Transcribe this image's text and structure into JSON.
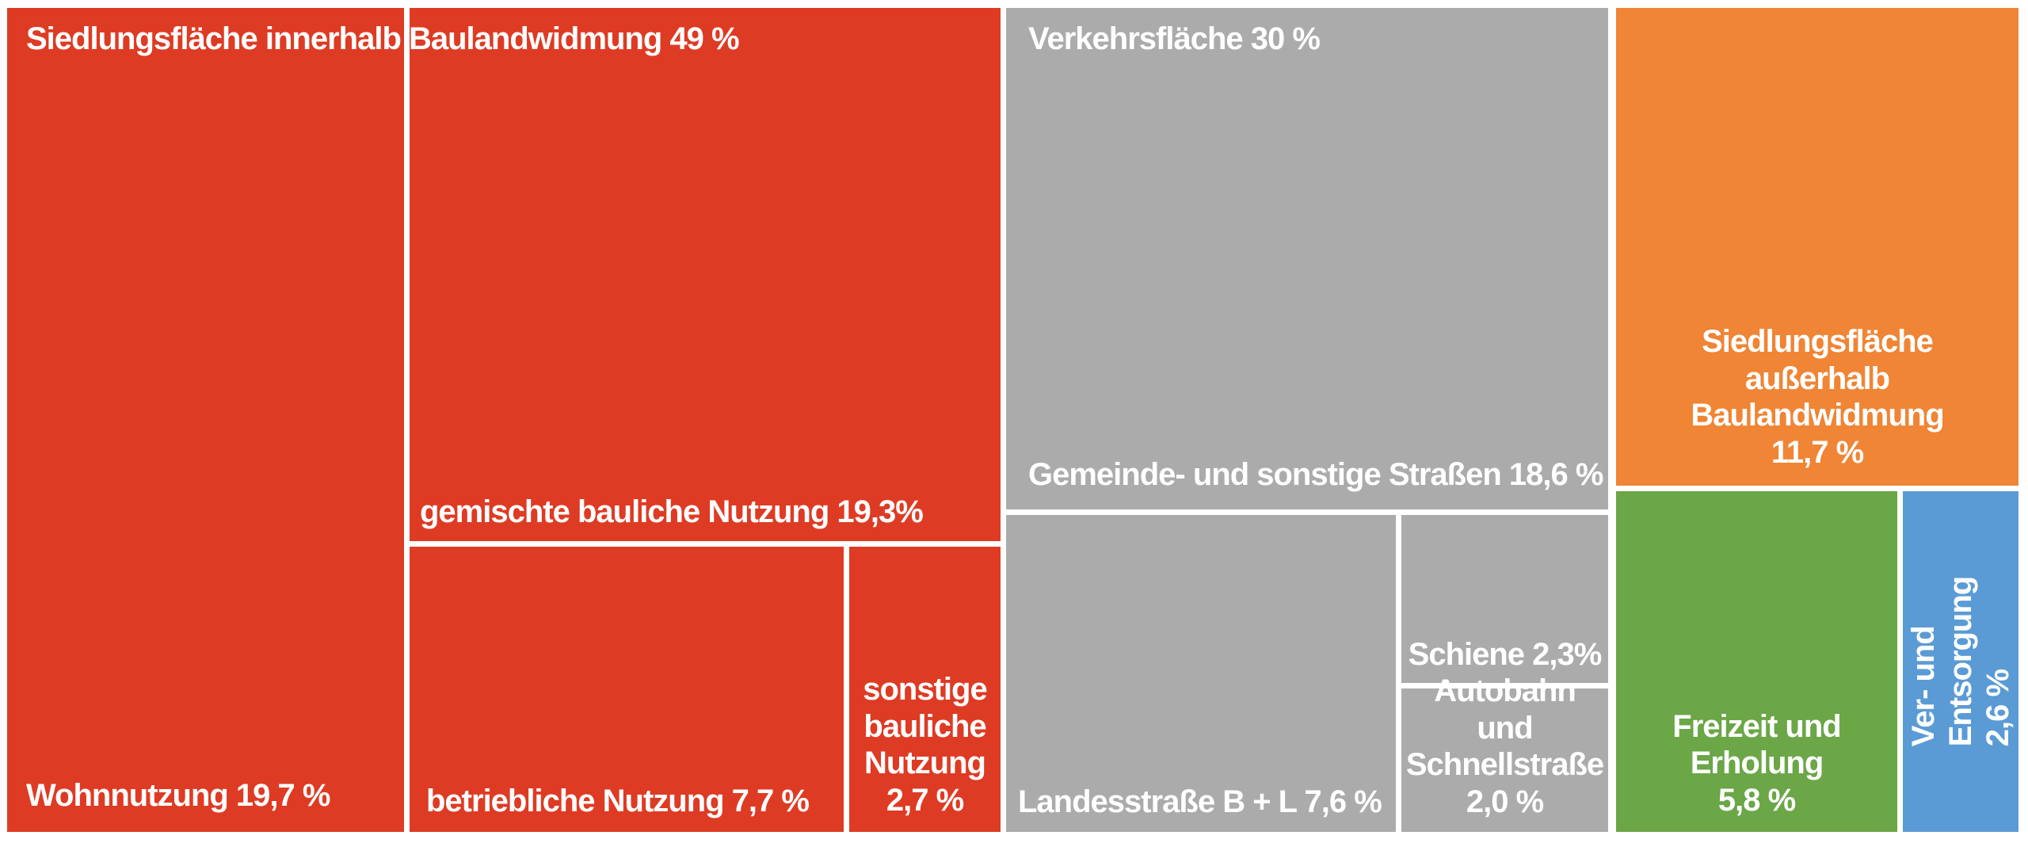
{
  "chart_data": {
    "type": "treemap",
    "title": "",
    "unit": "%",
    "legend": "none",
    "labels_in_tiles": true,
    "text_color": "#ffffff",
    "background_color": "#ffffff",
    "nodes": [
      {
        "name": "Siedlungsfläche innerhalb Baulandwidmung",
        "value": 49,
        "color": "#DE3B24",
        "children": [
          {
            "name": "Wohnnutzung",
            "value": 19.7
          },
          {
            "name": "gemischte bauliche Nutzung",
            "value": 19.3
          },
          {
            "name": "betriebliche Nutzung",
            "value": 7.7
          },
          {
            "name": "sonstige bauliche Nutzung",
            "value": 2.7
          }
        ]
      },
      {
        "name": "Verkehrsfläche",
        "value": 30,
        "color": "#ACABAB",
        "children": [
          {
            "name": "Gemeinde- und sonstige Straßen",
            "value": 18.6
          },
          {
            "name": "Landesstraße B + L",
            "value": 7.6
          },
          {
            "name": "Schiene",
            "value": 2.3
          },
          {
            "name": "Autobahn und Schnellstraße",
            "value": 2.0
          }
        ]
      },
      {
        "name": "Siedlungsfläche außerhalb Baulandwidmung",
        "value": 11.7,
        "color": "#EF8535"
      },
      {
        "name": "Freizeit und Erholung",
        "value": 5.8,
        "color": "#6BA647"
      },
      {
        "name": "Ver- und Entsorgung",
        "value": 2.6,
        "color": "#5B9BD5"
      }
    ]
  },
  "display": {
    "siedlung_innerhalb_title": "Siedlungsfläche innerhalb Baulandwidmung 49 %",
    "verkehrsflaeche_title": "Verkehrsfläche 30 %",
    "wohnnutzung": "Wohnnutzung 19,7 %",
    "gemischte": "gemischte bauliche Nutzung 19,3%",
    "betriebliche": "betriebliche Nutzung 7,7 %",
    "sonstige": "sonstige\nbauliche\nNutzung\n2,7 %",
    "gemeinde": "Gemeinde- und sonstige Straßen 18,6 %",
    "landesstrasse": "Landesstraße B + L 7,6 %",
    "schiene": "Schiene 2,3%",
    "autobahn": "Autobahn\nund\nSchnellstraße\n2,0 %",
    "siedlung_ausserhalb": "Siedlungsfläche\naußerhalb\nBaulandwidmung\n11,7 %",
    "freizeit": "Freizeit und\nErholung\n5,8 %",
    "versorgung": "Ver- und Entsorgung\n2,6 %"
  }
}
